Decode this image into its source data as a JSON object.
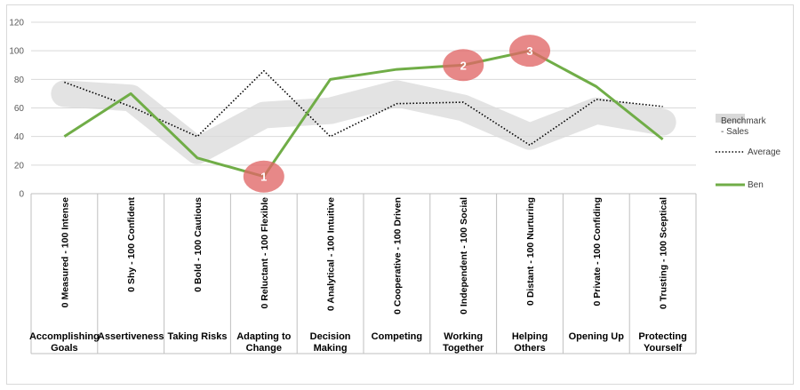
{
  "chart_data": {
    "type": "line",
    "ylim": [
      0,
      120
    ],
    "yticks": [
      "0",
      "20",
      "40",
      "60",
      "80",
      "100",
      "120"
    ],
    "grid": true,
    "legend_position": "right",
    "categories": [
      {
        "name": "Accomplishing Goals",
        "name_lines": [
          "Accomplishing",
          "Goals"
        ],
        "scale": "0 Measured - 100 Intense"
      },
      {
        "name": "Assertiveness",
        "name_lines": [
          "Assertiveness"
        ],
        "scale": "0 Shy - 100 Confident"
      },
      {
        "name": "Taking Risks",
        "name_lines": [
          "Taking Risks"
        ],
        "scale": "0 Bold - 100 Cautious"
      },
      {
        "name": "Adapting to Change",
        "name_lines": [
          "Adapting to",
          "Change"
        ],
        "scale": "0 Reluctant - 100 Flexible"
      },
      {
        "name": "Decision Making",
        "name_lines": [
          "Decision",
          "Making"
        ],
        "scale": "0 Analytical - 100 Intuitive"
      },
      {
        "name": "Competing",
        "name_lines": [
          "Competing"
        ],
        "scale": "0 Cooperative - 100 Driven"
      },
      {
        "name": "Working Together",
        "name_lines": [
          "Working",
          "Together"
        ],
        "scale": "0 Independent - 100 Social"
      },
      {
        "name": "Helping Others",
        "name_lines": [
          "Helping",
          "Others"
        ],
        "scale": "0 Distant - 100 Nurturing"
      },
      {
        "name": "Opening Up",
        "name_lines": [
          "Opening Up"
        ],
        "scale": "0 Private - 100 Confiding"
      },
      {
        "name": "Protecting Yourself",
        "name_lines": [
          "Protecting",
          "Yourself"
        ],
        "scale": "0 Trusting - 100 Sceptical"
      }
    ],
    "series": [
      {
        "name": "Benchmark - Sales",
        "legend_lines": [
          "Benchmark",
          "- Sales"
        ],
        "style": "band",
        "color": "#d9d9d9",
        "values": [
          70,
          67,
          30,
          55,
          58,
          70,
          60,
          40,
          58,
          50
        ]
      },
      {
        "name": "Average",
        "legend_lines": [
          "Average"
        ],
        "style": "dotted",
        "color": "#000000",
        "values": [
          78,
          61,
          40,
          86,
          40,
          63,
          64,
          34,
          66,
          61
        ]
      },
      {
        "name": "Ben",
        "legend_lines": [
          "Ben"
        ],
        "style": "solid",
        "color": "#70ad47",
        "values": [
          40,
          70,
          25,
          12,
          80,
          87,
          90,
          100,
          75,
          38
        ]
      }
    ],
    "annotations": [
      {
        "label": "1",
        "category_index": 3,
        "value": 12,
        "color": "#e06666"
      },
      {
        "label": "2",
        "category_index": 6,
        "value": 90,
        "color": "#e06666"
      },
      {
        "label": "3",
        "category_index": 7,
        "value": 100,
        "color": "#e06666"
      }
    ]
  }
}
